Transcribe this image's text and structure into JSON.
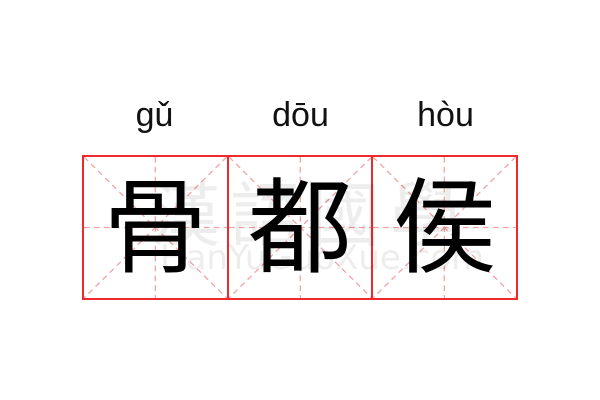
{
  "entries": [
    {
      "pinyin": "gǔ",
      "character": "骨"
    },
    {
      "pinyin": "dōu",
      "character": "都"
    },
    {
      "pinyin": "hòu",
      "character": "侯"
    }
  ],
  "watermark": {
    "text": "漢語國學",
    "url": "HanYuGuoXue.com"
  },
  "colors": {
    "grid_border": "#ee2a2a",
    "guide_lines": "#f4a0a0",
    "text": "#000000"
  }
}
